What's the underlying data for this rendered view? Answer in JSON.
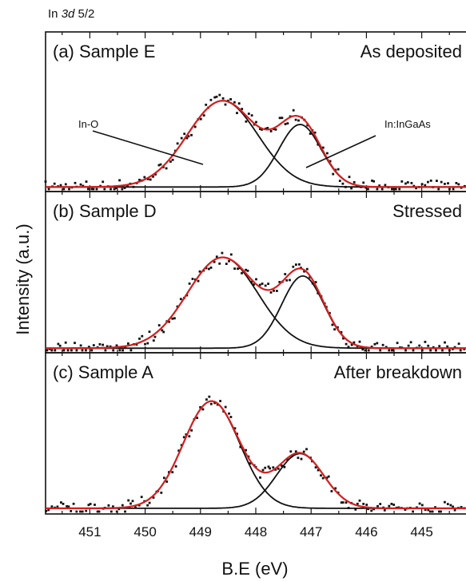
{
  "chart_data": {
    "type": "line",
    "title": {
      "prefix": "In ",
      "orbital": "3d",
      "suffix": " 5/2"
    },
    "xlabel": "B.E (eV)",
    "ylabel": "Intensity (a.u.)",
    "xlim": [
      451.8,
      444.2
    ],
    "xticks": [
      451,
      450,
      449,
      448,
      447,
      446,
      445
    ],
    "x_reversed": true,
    "grid": false,
    "panels": [
      {
        "label": "(a) Sample E",
        "condition": "As deposited",
        "annotations": [
          "In-O",
          "In:InGaAs"
        ],
        "peaks": [
          {
            "name": "In-O",
            "center": 448.6,
            "height": 0.8,
            "fwhm": 1.5
          },
          {
            "name": "In:InGaAs",
            "center": 447.2,
            "height": 0.58,
            "fwhm": 0.9
          }
        ],
        "background": 0.02
      },
      {
        "label": "(b) Sample D",
        "condition": "Stressed",
        "peaks": [
          {
            "name": "In-O",
            "center": 448.6,
            "height": 0.83,
            "fwhm": 1.5
          },
          {
            "name": "In:InGaAs",
            "center": 447.15,
            "height": 0.66,
            "fwhm": 0.9
          }
        ],
        "background": 0.02
      },
      {
        "label": "(c) Sample A",
        "condition": "After breakdown",
        "peaks": [
          {
            "name": "In-O",
            "center": 448.8,
            "height": 0.98,
            "fwhm": 1.2
          },
          {
            "name": "In:InGaAs",
            "center": 447.2,
            "height": 0.5,
            "fwhm": 1.0
          }
        ],
        "background": 0.03
      }
    ],
    "series_colors": {
      "data": "#111111",
      "components": "#111111",
      "envelope": "#d42020"
    }
  }
}
